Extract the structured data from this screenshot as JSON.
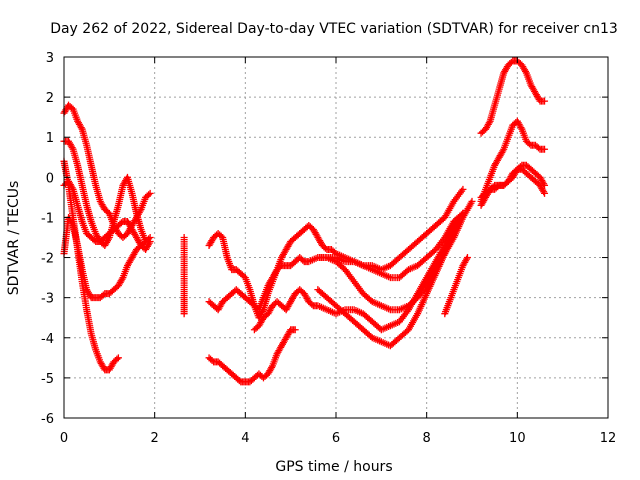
{
  "chart_data": {
    "type": "scatter",
    "title": "Day 262 of 2022, Sidereal Day-to-day VTEC variation (SDTVAR) for receiver cn13",
    "xlabel": "GPS time / hours",
    "ylabel": "SDTVAR / TECUs",
    "xlim": [
      0,
      12
    ],
    "ylim": [
      -6,
      3
    ],
    "xticks": [
      0,
      2,
      4,
      6,
      8,
      10,
      12
    ],
    "yticks": [
      -6,
      -5,
      -4,
      -3,
      -2,
      -1,
      0,
      1,
      2,
      3
    ],
    "grid": true,
    "legend": "none",
    "marker": "plus",
    "color": "#ff0000",
    "series": [
      {
        "x": [
          0.0,
          0.1,
          0.2,
          0.3,
          0.4,
          0.5,
          0.6,
          0.7,
          0.8,
          0.9,
          1.0,
          1.1,
          1.2
        ],
        "y": [
          0.4,
          -0.2,
          -1.0,
          -1.8,
          -2.6,
          -3.3,
          -3.9,
          -4.3,
          -4.6,
          -4.8,
          -4.8,
          -4.6,
          -4.5
        ]
      },
      {
        "x": [
          0.0,
          0.1,
          0.2,
          0.3,
          0.4,
          0.5,
          0.6,
          0.7,
          0.8,
          0.9,
          1.0,
          1.1,
          1.2,
          1.3,
          1.4,
          1.5,
          1.6,
          1.7,
          1.8
        ],
        "y": [
          -1.9,
          -1.0,
          -1.2,
          -1.7,
          -2.3,
          -2.8,
          -3.0,
          -3.0,
          -3.0,
          -2.9,
          -2.9,
          -2.8,
          -2.7,
          -2.5,
          -2.2,
          -2.0,
          -1.8,
          -1.7,
          -1.6
        ]
      },
      {
        "x": [
          0.0,
          0.1,
          0.2,
          0.3,
          0.4,
          0.5,
          0.6,
          0.7,
          0.8,
          0.9,
          1.0,
          1.1,
          1.2,
          1.3,
          1.4,
          1.5,
          1.6,
          1.7,
          1.8,
          1.9
        ],
        "y": [
          1.6,
          1.8,
          1.7,
          1.4,
          1.2,
          0.8,
          0.3,
          -0.2,
          -0.6,
          -0.8,
          -0.9,
          -1.2,
          -1.4,
          -1.5,
          -1.4,
          -1.2,
          -1.0,
          -0.8,
          -0.5,
          -0.4
        ]
      },
      {
        "x": [
          0.0,
          0.1,
          0.2,
          0.3,
          0.4,
          0.5,
          0.6,
          0.7,
          0.8,
          0.9,
          1.0,
          1.1,
          1.2,
          1.3,
          1.4,
          1.5,
          1.6,
          1.7,
          1.8,
          1.9
        ],
        "y": [
          0.9,
          0.9,
          0.7,
          0.3,
          -0.2,
          -0.7,
          -1.1,
          -1.4,
          -1.6,
          -1.7,
          -1.5,
          -1.1,
          -0.7,
          -0.2,
          0.0,
          -0.4,
          -0.9,
          -1.3,
          -1.6,
          -1.5
        ]
      },
      {
        "x": [
          0.0,
          0.1,
          0.2,
          0.3,
          0.4,
          0.5,
          0.6,
          0.7,
          0.8,
          0.9,
          1.0,
          1.1,
          1.2,
          1.3,
          1.4,
          1.5,
          1.6,
          1.7,
          1.8,
          1.9
        ],
        "y": [
          -0.2,
          -0.1,
          -0.3,
          -0.7,
          -1.1,
          -1.4,
          -1.5,
          -1.6,
          -1.6,
          -1.5,
          -1.4,
          -1.3,
          -1.2,
          -1.1,
          -1.1,
          -1.3,
          -1.5,
          -1.7,
          -1.8,
          -1.6
        ]
      },
      {
        "x": [
          2.65,
          2.65,
          2.65,
          2.65,
          2.65,
          2.65
        ],
        "y": [
          -1.5,
          -2.2,
          -2.8,
          -3.0,
          -3.3,
          -3.4
        ]
      },
      {
        "x": [
          3.2,
          3.3,
          3.4,
          3.5,
          3.6,
          3.7,
          3.8,
          3.9,
          4.0,
          4.1,
          4.2,
          4.3,
          4.4,
          4.5,
          4.6,
          4.7,
          4.8,
          4.9,
          5.0,
          5.1
        ],
        "y": [
          -4.5,
          -4.6,
          -4.6,
          -4.7,
          -4.8,
          -4.9,
          -5.0,
          -5.1,
          -5.1,
          -5.1,
          -5.0,
          -4.9,
          -5.0,
          -4.9,
          -4.7,
          -4.4,
          -4.2,
          -4.0,
          -3.8,
          -3.8
        ]
      },
      {
        "x": [
          3.2,
          3.3,
          3.4,
          3.5,
          3.6,
          3.7,
          3.8,
          3.9,
          4.0,
          4.1,
          4.2,
          4.3,
          4.4,
          4.5,
          4.6,
          4.7,
          4.8,
          4.9,
          5.0,
          5.1,
          5.2,
          5.3,
          5.4,
          5.5,
          5.6,
          5.7,
          5.8,
          5.9,
          6.0,
          6.2,
          6.4,
          6.6,
          6.8,
          7.0,
          7.2,
          7.4,
          7.6,
          7.8,
          8.0,
          8.2,
          8.4,
          8.6,
          8.8
        ],
        "y": [
          -1.7,
          -1.5,
          -1.4,
          -1.5,
          -2.0,
          -2.3,
          -2.3,
          -2.4,
          -2.5,
          -2.8,
          -3.2,
          -3.5,
          -3.3,
          -2.9,
          -2.6,
          -2.3,
          -2.0,
          -1.8,
          -1.6,
          -1.5,
          -1.4,
          -1.3,
          -1.2,
          -1.3,
          -1.5,
          -1.7,
          -1.8,
          -1.8,
          -1.9,
          -2.0,
          -2.1,
          -2.2,
          -2.2,
          -2.3,
          -2.2,
          -2.0,
          -1.8,
          -1.6,
          -1.4,
          -1.2,
          -1.0,
          -0.6,
          -0.3
        ]
      },
      {
        "x": [
          3.2,
          3.3,
          3.4,
          3.5,
          3.6,
          3.7,
          3.8,
          3.9,
          4.0,
          4.1,
          4.2,
          4.3,
          4.4,
          4.5,
          4.6,
          4.7,
          4.8,
          4.9,
          5.0,
          5.1,
          5.2,
          5.3,
          5.4,
          5.6,
          5.8,
          6.0,
          6.2,
          6.4,
          6.6,
          6.8,
          7.0,
          7.2,
          7.4,
          7.6,
          7.8,
          8.0,
          8.2,
          8.4,
          8.6,
          8.8
        ],
        "y": [
          -3.1,
          -3.2,
          -3.3,
          -3.1,
          -3.0,
          -2.9,
          -2.8,
          -2.9,
          -3.0,
          -3.1,
          -3.2,
          -3.3,
          -3.0,
          -2.7,
          -2.5,
          -2.3,
          -2.2,
          -2.2,
          -2.2,
          -2.1,
          -2.0,
          -2.1,
          -2.1,
          -2.0,
          -2.0,
          -2.0,
          -2.1,
          -2.1,
          -2.2,
          -2.3,
          -2.4,
          -2.5,
          -2.5,
          -2.3,
          -2.2,
          -2.0,
          -1.8,
          -1.5,
          -1.1,
          -0.9
        ]
      },
      {
        "x": [
          4.2,
          4.3,
          4.4,
          4.5,
          4.6,
          4.7,
          4.8,
          4.9,
          5.0,
          5.1,
          5.2,
          5.3,
          5.4,
          5.5,
          5.6,
          5.8,
          6.0,
          6.2,
          6.4,
          6.6,
          6.8,
          7.0,
          7.2,
          7.4,
          7.6,
          7.8,
          8.0,
          8.2,
          8.4,
          8.6,
          8.8
        ],
        "y": [
          -3.8,
          -3.7,
          -3.5,
          -3.4,
          -3.2,
          -3.1,
          -3.2,
          -3.3,
          -3.1,
          -2.9,
          -2.8,
          -2.9,
          -3.1,
          -3.2,
          -3.2,
          -3.3,
          -3.4,
          -3.3,
          -3.3,
          -3.4,
          -3.6,
          -3.8,
          -3.7,
          -3.6,
          -3.3,
          -2.9,
          -2.5,
          -2.1,
          -1.7,
          -1.3,
          -0.9
        ]
      },
      {
        "x": [
          5.6,
          5.8,
          6.0,
          6.2,
          6.4,
          6.6,
          6.8,
          7.0,
          7.2,
          7.4,
          7.6,
          7.8,
          8.0,
          8.2,
          8.4,
          8.6,
          8.8
        ],
        "y": [
          -2.8,
          -3.0,
          -3.2,
          -3.4,
          -3.6,
          -3.8,
          -4.0,
          -4.1,
          -4.2,
          -4.0,
          -3.8,
          -3.4,
          -2.9,
          -2.4,
          -1.9,
          -1.4,
          -0.9
        ]
      },
      {
        "x": [
          5.6,
          5.8,
          6.0,
          6.2,
          6.4,
          6.6,
          6.8,
          7.0,
          7.2,
          7.4,
          7.6,
          7.8,
          8.0,
          8.2,
          8.4,
          8.6,
          8.8,
          9.0
        ],
        "y": [
          -2.0,
          -2.0,
          -2.1,
          -2.3,
          -2.6,
          -2.9,
          -3.1,
          -3.2,
          -3.3,
          -3.3,
          -3.2,
          -3.0,
          -2.7,
          -2.3,
          -1.9,
          -1.5,
          -1.0,
          -0.6
        ]
      },
      {
        "x": [
          8.4,
          8.5,
          8.6,
          8.7,
          8.8,
          8.9
        ],
        "y": [
          -3.4,
          -3.1,
          -2.8,
          -2.5,
          -2.2,
          -2.0
        ]
      },
      {
        "x": [
          9.2,
          9.3,
          9.4,
          9.5,
          9.6,
          9.7,
          9.8,
          9.9,
          10.0,
          10.1,
          10.2,
          10.3,
          10.4,
          10.5,
          10.6
        ],
        "y": [
          1.1,
          1.2,
          1.4,
          1.8,
          2.2,
          2.6,
          2.8,
          2.9,
          2.9,
          2.8,
          2.6,
          2.3,
          2.1,
          1.9,
          1.9
        ]
      },
      {
        "x": [
          9.2,
          9.3,
          9.4,
          9.5,
          9.6,
          9.7,
          9.8,
          9.9,
          10.0,
          10.1,
          10.2,
          10.3,
          10.4,
          10.5,
          10.6
        ],
        "y": [
          -0.6,
          -0.3,
          0.0,
          0.3,
          0.5,
          0.7,
          1.0,
          1.3,
          1.4,
          1.2,
          0.9,
          0.8,
          0.8,
          0.7,
          0.7
        ]
      },
      {
        "x": [
          9.2,
          9.3,
          9.4,
          9.5,
          9.6,
          9.7,
          9.8,
          9.9,
          10.0,
          10.1,
          10.2,
          10.3,
          10.4,
          10.5,
          10.6
        ],
        "y": [
          -0.7,
          -0.5,
          -0.3,
          -0.2,
          -0.2,
          -0.2,
          -0.1,
          0.1,
          0.2,
          0.2,
          0.1,
          0.0,
          -0.1,
          -0.2,
          -0.4
        ]
      },
      {
        "x": [
          9.2,
          9.3,
          9.4,
          9.5,
          9.6,
          9.7,
          9.8,
          9.9,
          10.0,
          10.1,
          10.2,
          10.3,
          10.4,
          10.5,
          10.6
        ],
        "y": [
          -0.5,
          -0.4,
          -0.3,
          -0.3,
          -0.2,
          -0.2,
          -0.1,
          0.0,
          0.2,
          0.3,
          0.3,
          0.2,
          0.1,
          0.0,
          -0.2
        ]
      }
    ]
  }
}
